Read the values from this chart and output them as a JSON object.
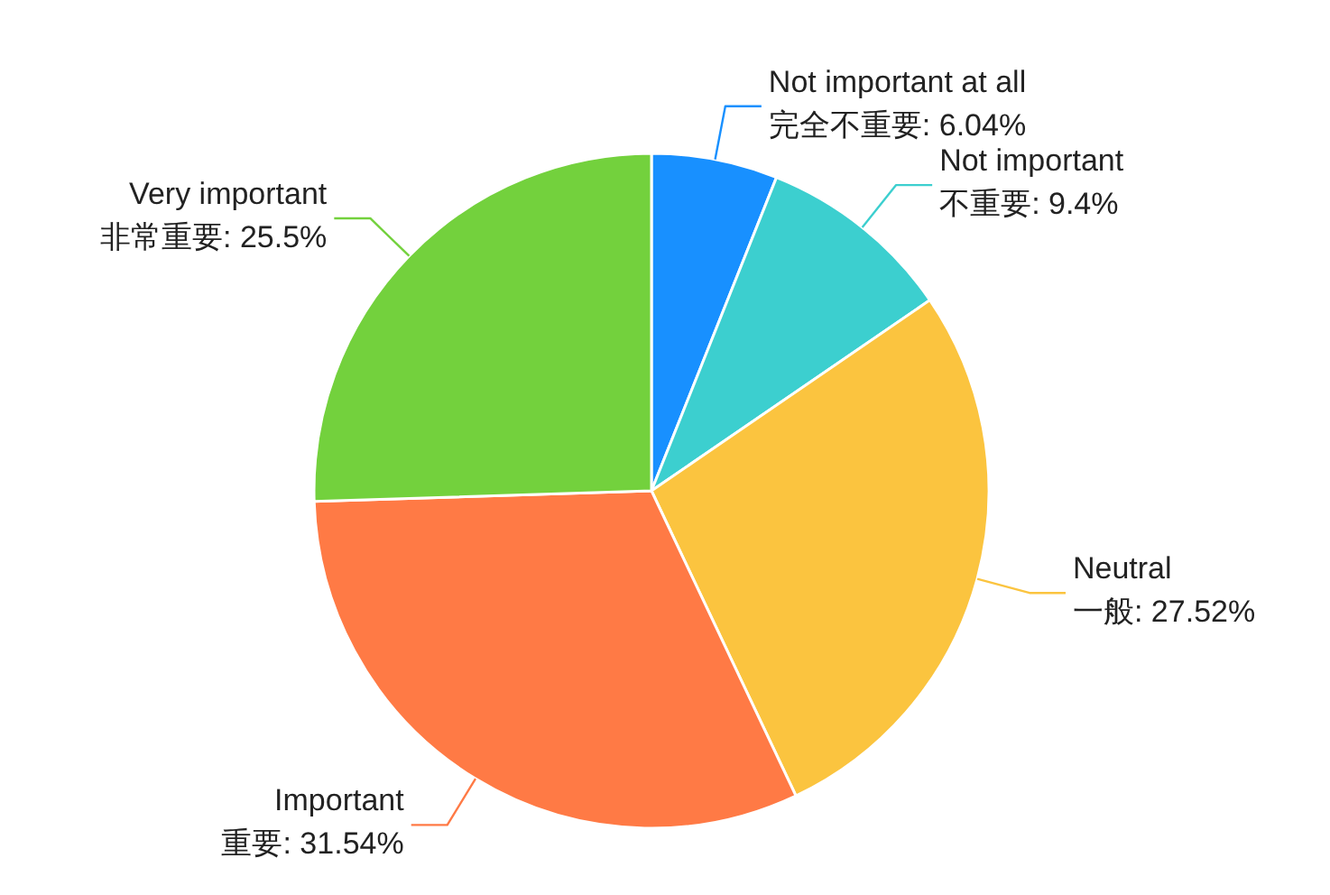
{
  "chart_data": {
    "type": "pie",
    "categories": [
      "完全不重要",
      "不重要",
      "一般",
      "重要",
      "非常重要"
    ],
    "values": [
      6.04,
      9.4,
      27.52,
      31.54,
      25.5
    ],
    "value_labels": [
      "6.04%",
      "9.4%",
      "27.52%",
      "31.54%",
      "25.5%"
    ],
    "colors": [
      "#1890ff",
      "#3ccfcf",
      "#fbc43f",
      "#ff7a45",
      "#73d13d"
    ],
    "annotations": [
      "Not important at all",
      "Not important",
      "Neutral",
      "Important",
      "Very important"
    ]
  }
}
